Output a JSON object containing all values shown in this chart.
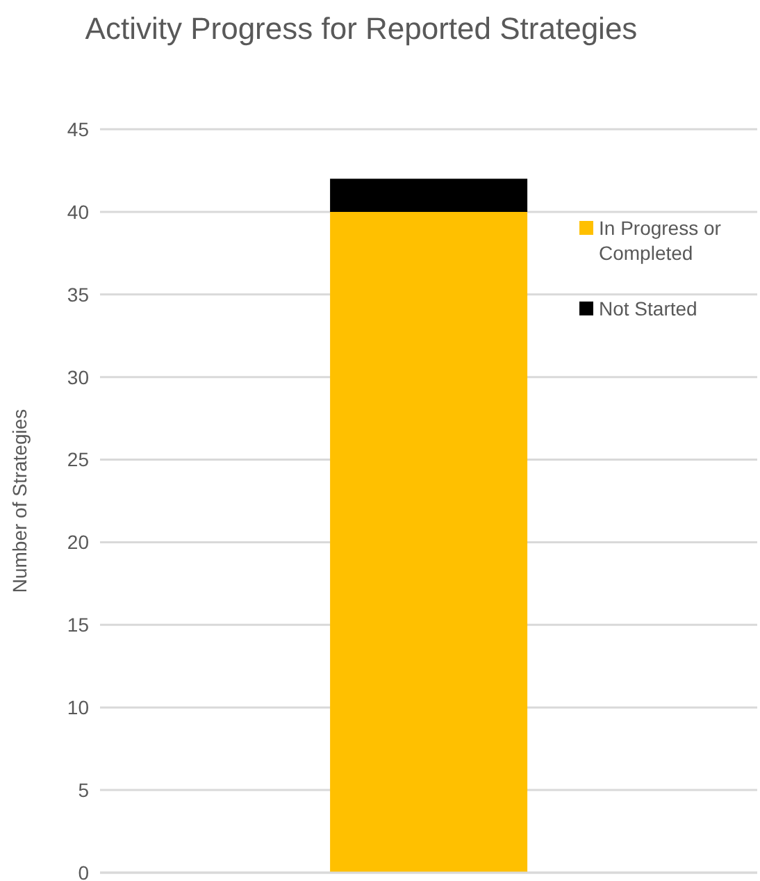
{
  "chart_data": {
    "type": "bar",
    "title": "Activity Progress for Reported Strategies",
    "ylabel": "Number of Strategies",
    "categories": [
      null
    ],
    "stacked": true,
    "series": [
      {
        "name": "In Progress or Completed",
        "color": "#ffc000",
        "values": [
          40
        ]
      },
      {
        "name": "Not Started",
        "color": "#000000",
        "values": [
          2
        ]
      }
    ],
    "ylim": [
      0,
      45
    ],
    "yticks": [
      0,
      5,
      10,
      15,
      20,
      25,
      30,
      35,
      40,
      45
    ],
    "grid": "y",
    "legend": "right"
  }
}
